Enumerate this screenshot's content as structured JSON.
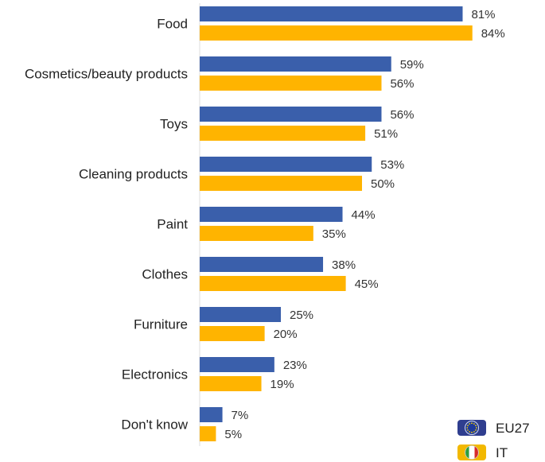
{
  "chart_data": {
    "type": "bar",
    "orientation": "horizontal",
    "categories": [
      "Food",
      "Cosmetics/beauty products",
      "Toys",
      "Cleaning products",
      "Paint",
      "Clothes",
      "Furniture",
      "Electronics",
      "Don't know"
    ],
    "series": [
      {
        "name": "EU27",
        "color": "#3A5FAB",
        "values": [
          81,
          59,
          56,
          53,
          44,
          38,
          25,
          23,
          7
        ]
      },
      {
        "name": "IT",
        "color": "#FFB400",
        "values": [
          84,
          56,
          51,
          50,
          35,
          45,
          20,
          19,
          5
        ]
      }
    ],
    "value_suffix": "%",
    "grid": false,
    "legend_position": "bottom-right",
    "legend": [
      {
        "label": "EU27",
        "icon": "eu-flag-icon"
      },
      {
        "label": "IT",
        "icon": "italy-flag-icon"
      }
    ]
  }
}
